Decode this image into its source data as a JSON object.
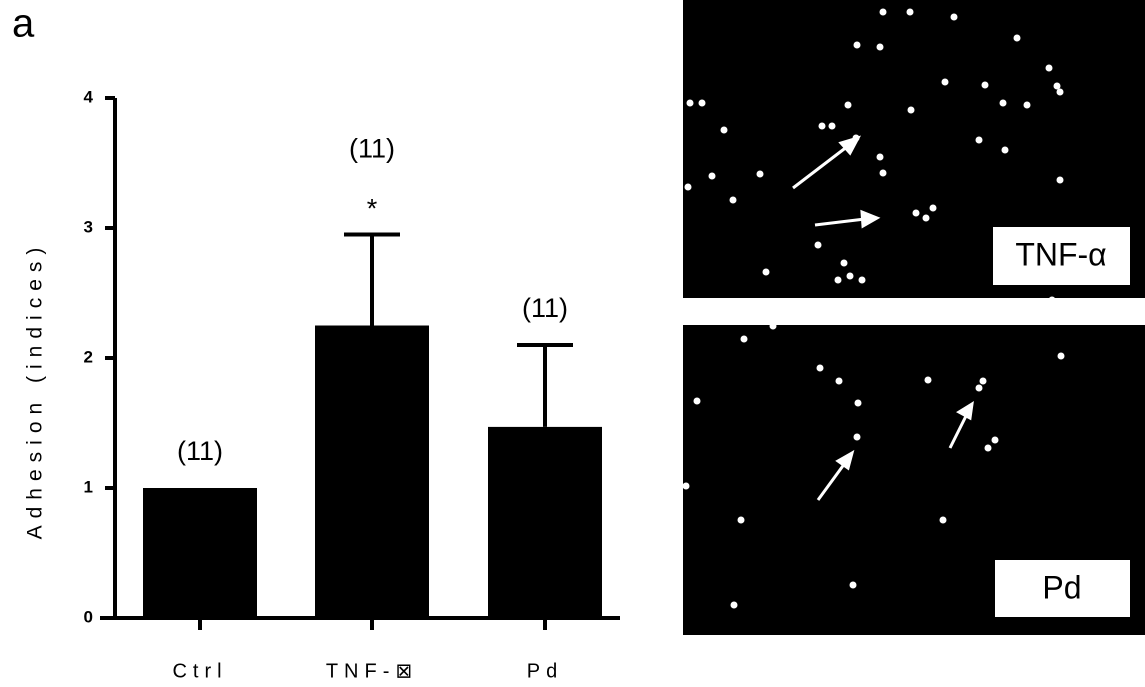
{
  "chart_data": {
    "type": "bar",
    "panel_letter": "a",
    "y_label": "Adhesion (indices)",
    "categories": [
      "Ctrl",
      "TNF-⊠",
      "Pd"
    ],
    "values": [
      1.0,
      2.25,
      1.47
    ],
    "errors": [
      null,
      0.7,
      0.63
    ],
    "color": "#000000",
    "ylim": [
      0,
      4
    ],
    "yticks": [
      0,
      1,
      2,
      3,
      4
    ],
    "n_labels": [
      "(11)",
      "(11)",
      "(11)"
    ],
    "significance": [
      null,
      "*",
      null
    ]
  },
  "images": [
    {
      "label": "TNF-α"
    },
    {
      "label": "Pd"
    }
  ]
}
